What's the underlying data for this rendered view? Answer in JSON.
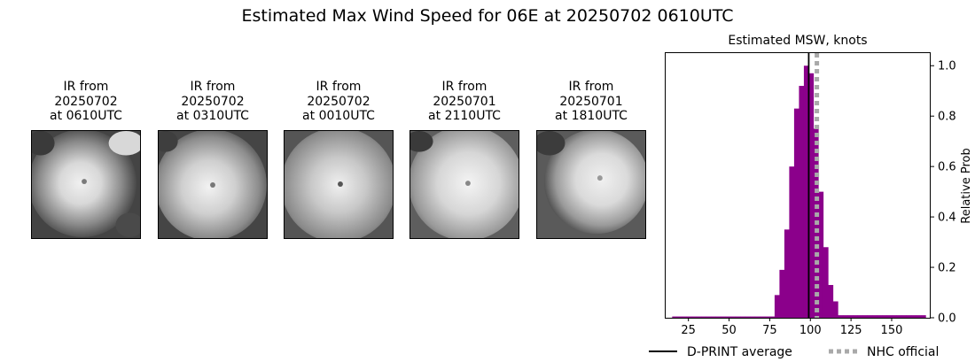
{
  "figure": {
    "title": "Estimated Max Wind Speed for 06E at 20250702 0610UTC"
  },
  "panels": [
    {
      "line1": "IR from",
      "line2": "20250702",
      "line3": "at 0610UTC"
    },
    {
      "line1": "IR from",
      "line2": "20250702",
      "line3": "at 0310UTC"
    },
    {
      "line1": "IR from",
      "line2": "20250702",
      "line3": "at 0010UTC"
    },
    {
      "line1": "IR from",
      "line2": "20250701",
      "line3": "at 2110UTC"
    },
    {
      "line1": "IR from",
      "line2": "20250701",
      "line3": "at 1810UTC"
    }
  ],
  "chart_data": {
    "type": "bar",
    "title": "Estimated MSW, knots",
    "xlabel": "",
    "ylabel": "Relative Prob",
    "xlim": [
      11,
      174
    ],
    "ylim": [
      0,
      1.05
    ],
    "xticks": [
      25,
      50,
      75,
      100,
      125,
      150
    ],
    "yticks": [
      0.0,
      0.2,
      0.4,
      0.6,
      0.8,
      1.0
    ],
    "y_axis_side": "right",
    "bar_color": "#8b008b",
    "bin_width": 3,
    "bin_starts": [
      15,
      18,
      21,
      24,
      27,
      30,
      33,
      36,
      39,
      42,
      45,
      48,
      51,
      54,
      57,
      60,
      63,
      66,
      69,
      72,
      75,
      78,
      81,
      84,
      87,
      90,
      93,
      96,
      99,
      102,
      105,
      108,
      111,
      114,
      117,
      120,
      123,
      126,
      129,
      132,
      135,
      138,
      141,
      144,
      147,
      150,
      153,
      156,
      159,
      162,
      165,
      168
    ],
    "values": [
      0.005,
      0.005,
      0.005,
      0.005,
      0.005,
      0.005,
      0.005,
      0.005,
      0.005,
      0.005,
      0.005,
      0.005,
      0.005,
      0.005,
      0.005,
      0.005,
      0.005,
      0.005,
      0.005,
      0.005,
      0.005,
      0.09,
      0.19,
      0.35,
      0.6,
      0.83,
      0.92,
      1.0,
      0.97,
      0.75,
      0.5,
      0.28,
      0.13,
      0.065,
      0.01,
      0.01,
      0.01,
      0.01,
      0.01,
      0.01,
      0.01,
      0.01,
      0.01,
      0.01,
      0.01,
      0.01,
      0.01,
      0.01,
      0.01,
      0.01,
      0.01,
      0.01
    ],
    "lines": [
      {
        "name": "D-PRINT average",
        "x": 99,
        "color": "#000000",
        "style": "solid"
      },
      {
        "name": "NHC official",
        "x": 104,
        "color": "#a9a9a9",
        "style": "dotted"
      }
    ],
    "legend": "bottom"
  }
}
